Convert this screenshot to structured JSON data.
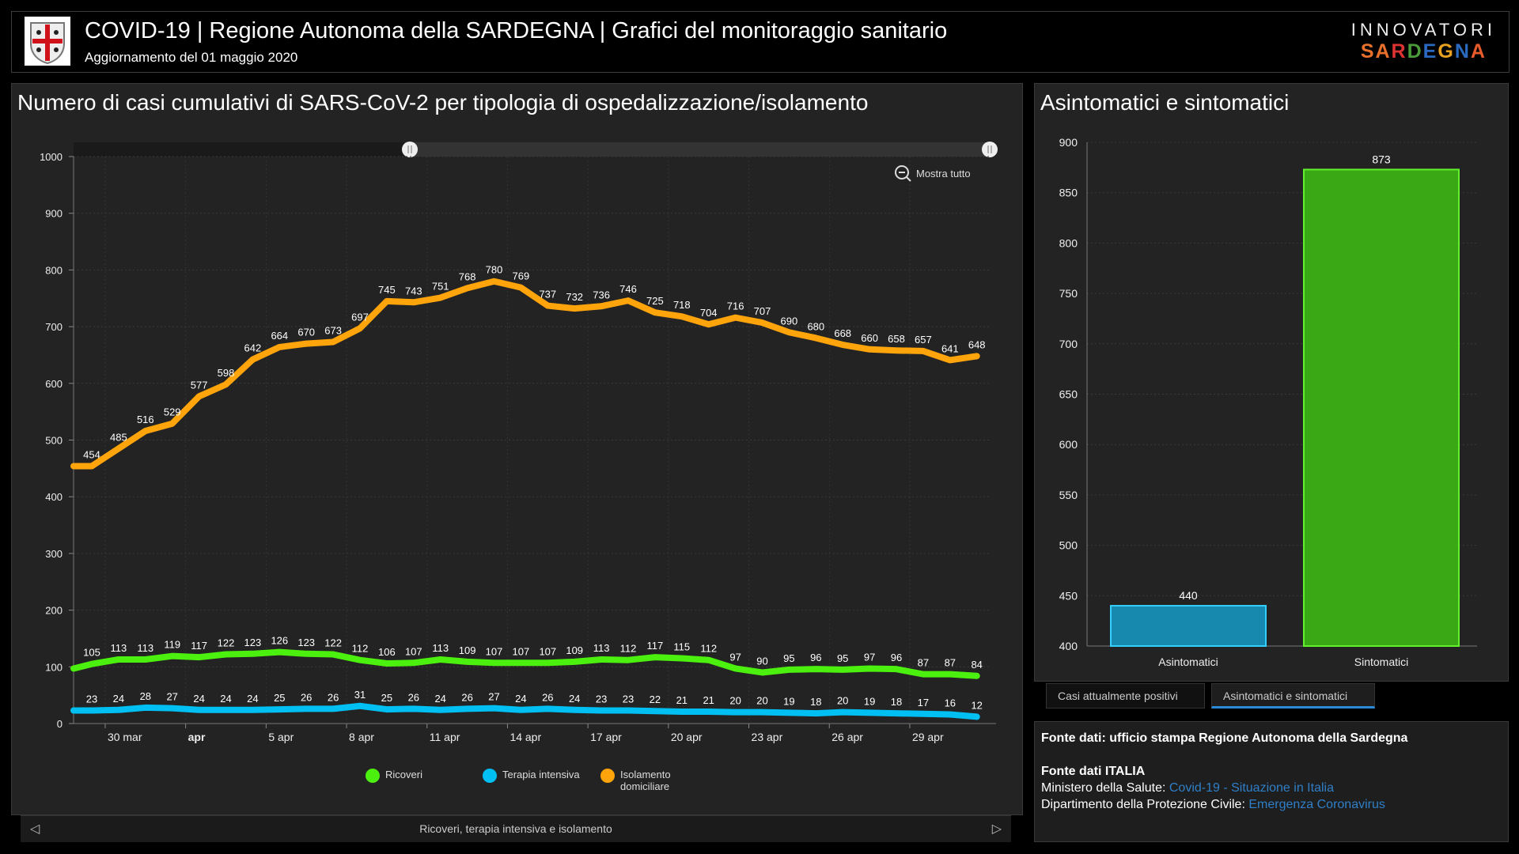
{
  "header": {
    "title": "COVID-19 | Regione Autonoma della SARDEGNA | Grafici del monitoraggio sanitario",
    "subtitle": "Aggiornamento del 01 maggio 2020",
    "brand_line1": "INNOVATORI",
    "brand_line2": "SARDEGNA"
  },
  "colors": {
    "ricoveri": "#4cf00e",
    "terapia": "#00bff2",
    "isolamento": "#ffa40a",
    "asintomatici": "#1788ae",
    "sintomatici": "#3aa815"
  },
  "left_panel": {
    "title": "Numero di casi cumulativi di SARS-CoV-2 per tipologia di ospedalizzazione/isolamento",
    "zoom_button": "Mostra tutto",
    "nav_caption": "Ricoveri, terapia intensiva e isolamento"
  },
  "chart_data": [
    {
      "type": "line",
      "title": "Numero di casi cumulativi di SARS-CoV-2 per tipologia di ospedalizzazione/isolamento",
      "ylim": [
        0,
        1000
      ],
      "yticks": [
        0,
        100,
        200,
        300,
        400,
        500,
        600,
        700,
        800,
        900,
        1000
      ],
      "x_start": "29 mar",
      "x_end": "1 mag",
      "xticks": [
        "30 mar",
        "apr",
        "5 apr",
        "8 apr",
        "11 apr",
        "14 apr",
        "17 apr",
        "20 apr",
        "23 apr",
        "26 apr",
        "29 apr"
      ],
      "legend": "bottom",
      "grid": true,
      "series": [
        {
          "key": "ricoveri",
          "name": "Ricoveri",
          "prev_value": 97,
          "values": [
            105,
            113,
            113,
            119,
            117,
            122,
            123,
            126,
            123,
            122,
            112,
            106,
            107,
            113,
            109,
            107,
            107,
            107,
            109,
            113,
            112,
            117,
            115,
            112,
            97,
            90,
            95,
            96,
            95,
            97,
            96,
            87,
            87,
            84
          ]
        },
        {
          "key": "terapia",
          "name": "Terapia intensiva",
          "prev_value": 23,
          "values": [
            23,
            24,
            28,
            27,
            24,
            24,
            24,
            25,
            26,
            26,
            31,
            25,
            26,
            24,
            26,
            27,
            24,
            26,
            24,
            23,
            23,
            22,
            21,
            21,
            20,
            20,
            19,
            18,
            20,
            19,
            18,
            17,
            16,
            12
          ]
        },
        {
          "key": "isolamento",
          "name": "Isolamento domiciliare",
          "prev_value": 454,
          "values": [
            454,
            485,
            516,
            529,
            577,
            598,
            642,
            664,
            670,
            673,
            697,
            745,
            743,
            751,
            768,
            780,
            769,
            737,
            732,
            736,
            746,
            725,
            718,
            704,
            716,
            707,
            690,
            680,
            668,
            660,
            658,
            657,
            641,
            648
          ]
        }
      ]
    },
    {
      "type": "bar",
      "title": "Asintomatici e sintomatici",
      "categories": [
        "Asintomatici",
        "Sintomatici"
      ],
      "values": [
        440,
        873
      ],
      "ylim": [
        400,
        900
      ],
      "yticks": [
        400,
        450,
        500,
        550,
        600,
        650,
        700,
        750,
        800,
        850,
        900
      ]
    }
  ],
  "right_panel": {
    "title": "Asintomatici e sintomatici"
  },
  "tabs": [
    {
      "label": "Casi attualmente positivi"
    },
    {
      "label": "Asintomatici e sintomatici"
    }
  ],
  "sources": {
    "line1": "Fonte dati: ufficio stampa Regione Autonoma della Sardegna",
    "line2": "Fonte dati ITALIA",
    "ministero_label": "Ministero della Salute: ",
    "ministero_link": "Covid-19 - Situazione in Italia",
    "dpc_label": "Dipartimento della Protezione Civile: ",
    "dpc_link": "Emergenza Coronavirus"
  }
}
